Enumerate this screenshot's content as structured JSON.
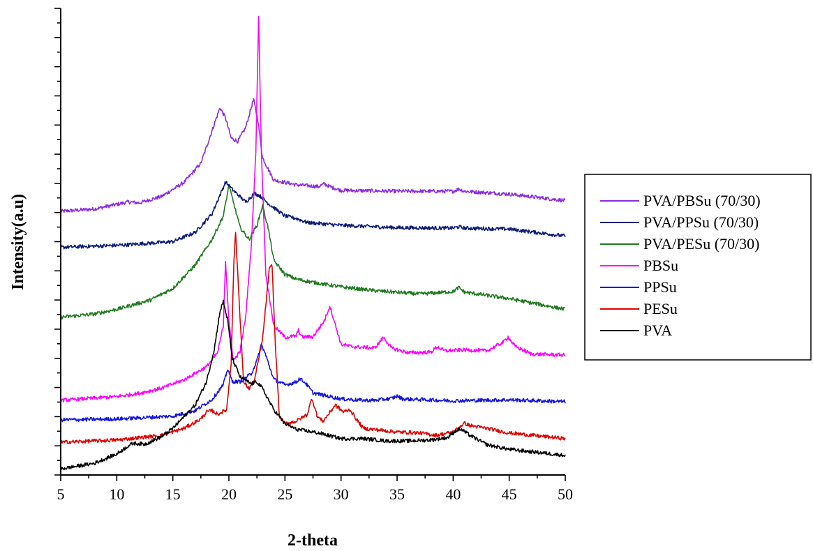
{
  "chart_data": {
    "type": "line",
    "title": "",
    "xlabel": "2-theta",
    "ylabel": "Intensity(a.u)",
    "xlim": [
      5,
      50
    ],
    "xticks": [
      "5",
      "10",
      "15",
      "20",
      "25",
      "30",
      "35",
      "40",
      "45",
      "50"
    ],
    "yticks_labeled": false,
    "grid": false,
    "legend_position": "right",
    "series": [
      {
        "name": "PVA/PBSu (70/30)",
        "color": "#8B2BE2",
        "points": [
          [
            5,
            0.565
          ],
          [
            8,
            0.57
          ],
          [
            10,
            0.58
          ],
          [
            11,
            0.585
          ],
          [
            12,
            0.583
          ],
          [
            14,
            0.597
          ],
          [
            16,
            0.627
          ],
          [
            17.5,
            0.668
          ],
          [
            18.5,
            0.738
          ],
          [
            19.2,
            0.787
          ],
          [
            19.7,
            0.765
          ],
          [
            20.2,
            0.722
          ],
          [
            20.8,
            0.715
          ],
          [
            21.5,
            0.745
          ],
          [
            22.2,
            0.805
          ],
          [
            22.6,
            0.758
          ],
          [
            23.0,
            0.68
          ],
          [
            24,
            0.632
          ],
          [
            26,
            0.622
          ],
          [
            28,
            0.618
          ],
          [
            28.5,
            0.624
          ],
          [
            29,
            0.618
          ],
          [
            30,
            0.61
          ],
          [
            35,
            0.608
          ],
          [
            40,
            0.608
          ],
          [
            40.5,
            0.613
          ],
          [
            41,
            0.608
          ],
          [
            45,
            0.602
          ],
          [
            50,
            0.588
          ]
        ]
      },
      {
        "name": "PVA/PPSu (70/30)",
        "color": "#0A1A7A",
        "points": [
          [
            5,
            0.488
          ],
          [
            10,
            0.492
          ],
          [
            15,
            0.5
          ],
          [
            17,
            0.52
          ],
          [
            18.5,
            0.56
          ],
          [
            19.7,
            0.628
          ],
          [
            20.3,
            0.612
          ],
          [
            21.5,
            0.585
          ],
          [
            22.3,
            0.604
          ],
          [
            22.9,
            0.596
          ],
          [
            23.5,
            0.582
          ],
          [
            25,
            0.555
          ],
          [
            26,
            0.55
          ],
          [
            27,
            0.541
          ],
          [
            30,
            0.535
          ],
          [
            35,
            0.53
          ],
          [
            40,
            0.529
          ],
          [
            40.5,
            0.532
          ],
          [
            41,
            0.529
          ],
          [
            45,
            0.527
          ],
          [
            50,
            0.512
          ]
        ]
      },
      {
        "name": "PVA/PESu (70/30)",
        "color": "#1F7A1F",
        "points": [
          [
            5,
            0.338
          ],
          [
            8,
            0.345
          ],
          [
            10,
            0.355
          ],
          [
            13,
            0.375
          ],
          [
            15,
            0.4
          ],
          [
            17,
            0.45
          ],
          [
            18.5,
            0.505
          ],
          [
            19.5,
            0.555
          ],
          [
            20.0,
            0.62
          ],
          [
            20.4,
            0.585
          ],
          [
            21.0,
            0.53
          ],
          [
            21.8,
            0.505
          ],
          [
            22.5,
            0.535
          ],
          [
            23.0,
            0.577
          ],
          [
            23.5,
            0.53
          ],
          [
            24,
            0.46
          ],
          [
            25,
            0.43
          ],
          [
            26,
            0.42
          ],
          [
            27,
            0.415
          ],
          [
            30,
            0.403
          ],
          [
            33,
            0.395
          ],
          [
            37,
            0.388
          ],
          [
            40,
            0.393
          ],
          [
            40.5,
            0.402
          ],
          [
            41,
            0.392
          ],
          [
            45,
            0.378
          ],
          [
            50,
            0.355
          ]
        ]
      },
      {
        "name": "PBSu",
        "color": "#FF00FF",
        "points": [
          [
            5,
            0.16
          ],
          [
            10,
            0.168
          ],
          [
            12,
            0.175
          ],
          [
            14,
            0.186
          ],
          [
            16,
            0.204
          ],
          [
            18,
            0.232
          ],
          [
            19.0,
            0.262
          ],
          [
            19.5,
            0.32
          ],
          [
            19.7,
            0.46
          ],
          [
            20.0,
            0.33
          ],
          [
            20.4,
            0.245
          ],
          [
            21.0,
            0.265
          ],
          [
            21.5,
            0.34
          ],
          [
            22.0,
            0.49
          ],
          [
            22.4,
            0.69
          ],
          [
            22.65,
            0.985
          ],
          [
            22.9,
            0.69
          ],
          [
            23.3,
            0.43
          ],
          [
            24,
            0.32
          ],
          [
            25,
            0.295
          ],
          [
            26,
            0.298
          ],
          [
            26.2,
            0.31
          ],
          [
            26.5,
            0.296
          ],
          [
            27.5,
            0.296
          ],
          [
            28.5,
            0.33
          ],
          [
            29,
            0.362
          ],
          [
            29.4,
            0.33
          ],
          [
            30,
            0.28
          ],
          [
            31,
            0.275
          ],
          [
            33,
            0.272
          ],
          [
            33.8,
            0.295
          ],
          [
            34.5,
            0.272
          ],
          [
            36,
            0.262
          ],
          [
            38,
            0.263
          ],
          [
            38.6,
            0.275
          ],
          [
            39.2,
            0.266
          ],
          [
            41,
            0.268
          ],
          [
            43,
            0.266
          ],
          [
            44.5,
            0.285
          ],
          [
            44.9,
            0.296
          ],
          [
            45.5,
            0.276
          ],
          [
            47,
            0.259
          ],
          [
            50,
            0.257
          ]
        ]
      },
      {
        "name": "PPSu",
        "color": "#1515E0",
        "points": [
          [
            5,
            0.118
          ],
          [
            10,
            0.12
          ],
          [
            15,
            0.126
          ],
          [
            17,
            0.138
          ],
          [
            18.5,
            0.162
          ],
          [
            19.5,
            0.193
          ],
          [
            19.9,
            0.228
          ],
          [
            20.3,
            0.2
          ],
          [
            21.0,
            0.2
          ],
          [
            22.0,
            0.217
          ],
          [
            22.5,
            0.245
          ],
          [
            22.9,
            0.28
          ],
          [
            23.3,
            0.256
          ],
          [
            24,
            0.205
          ],
          [
            25,
            0.193
          ],
          [
            26,
            0.199
          ],
          [
            26.3,
            0.207
          ],
          [
            26.8,
            0.198
          ],
          [
            27.5,
            0.176
          ],
          [
            29,
            0.168
          ],
          [
            30,
            0.163
          ],
          [
            32,
            0.16
          ],
          [
            33,
            0.16
          ],
          [
            34.5,
            0.164
          ],
          [
            35,
            0.169
          ],
          [
            35.5,
            0.163
          ],
          [
            40,
            0.159
          ],
          [
            45,
            0.161
          ],
          [
            50,
            0.157
          ]
        ]
      },
      {
        "name": "PESu",
        "color": "#E00000",
        "points": [
          [
            5,
            0.07
          ],
          [
            10,
            0.075
          ],
          [
            14,
            0.085
          ],
          [
            16,
            0.1
          ],
          [
            17.5,
            0.12
          ],
          [
            18.0,
            0.135
          ],
          [
            18.5,
            0.138
          ],
          [
            19.0,
            0.13
          ],
          [
            19.8,
            0.14
          ],
          [
            20.2,
            0.24
          ],
          [
            20.45,
            0.46
          ],
          [
            20.6,
            0.52
          ],
          [
            20.9,
            0.38
          ],
          [
            21.3,
            0.2
          ],
          [
            21.8,
            0.185
          ],
          [
            22.3,
            0.205
          ],
          [
            23.0,
            0.29
          ],
          [
            23.6,
            0.44
          ],
          [
            23.85,
            0.45
          ],
          [
            24.1,
            0.3
          ],
          [
            24.5,
            0.125
          ],
          [
            25,
            0.11
          ],
          [
            26,
            0.115
          ],
          [
            27.0,
            0.13
          ],
          [
            27.4,
            0.165
          ],
          [
            27.9,
            0.125
          ],
          [
            28.4,
            0.115
          ],
          [
            29.5,
            0.15
          ],
          [
            30.2,
            0.135
          ],
          [
            30.8,
            0.14
          ],
          [
            31.5,
            0.115
          ],
          [
            32,
            0.1
          ],
          [
            35,
            0.092
          ],
          [
            37,
            0.09
          ],
          [
            38.5,
            0.085
          ],
          [
            40,
            0.092
          ],
          [
            41,
            0.111
          ],
          [
            41.5,
            0.106
          ],
          [
            43,
            0.1
          ],
          [
            45,
            0.09
          ],
          [
            50,
            0.078
          ]
        ]
      },
      {
        "name": "PVA",
        "color": "#000000",
        "points": [
          [
            5,
            0.013
          ],
          [
            8,
            0.025
          ],
          [
            10,
            0.045
          ],
          [
            11,
            0.062
          ],
          [
            11.5,
            0.068
          ],
          [
            12.5,
            0.066
          ],
          [
            14,
            0.082
          ],
          [
            15,
            0.1
          ],
          [
            16,
            0.125
          ],
          [
            17,
            0.15
          ],
          [
            18,
            0.2
          ],
          [
            18.7,
            0.27
          ],
          [
            19.2,
            0.35
          ],
          [
            19.5,
            0.372
          ],
          [
            19.9,
            0.33
          ],
          [
            20.3,
            0.25
          ],
          [
            21,
            0.21
          ],
          [
            22,
            0.195
          ],
          [
            22.5,
            0.2
          ],
          [
            23,
            0.185
          ],
          [
            24,
            0.14
          ],
          [
            25,
            0.11
          ],
          [
            26,
            0.098
          ],
          [
            28,
            0.09
          ],
          [
            30,
            0.078
          ],
          [
            32,
            0.078
          ],
          [
            34,
            0.073
          ],
          [
            36,
            0.073
          ],
          [
            38,
            0.075
          ],
          [
            39.5,
            0.08
          ],
          [
            40.3,
            0.096
          ],
          [
            40.7,
            0.098
          ],
          [
            41.5,
            0.085
          ],
          [
            43,
            0.065
          ],
          [
            45,
            0.055
          ],
          [
            50,
            0.042
          ]
        ]
      }
    ]
  }
}
